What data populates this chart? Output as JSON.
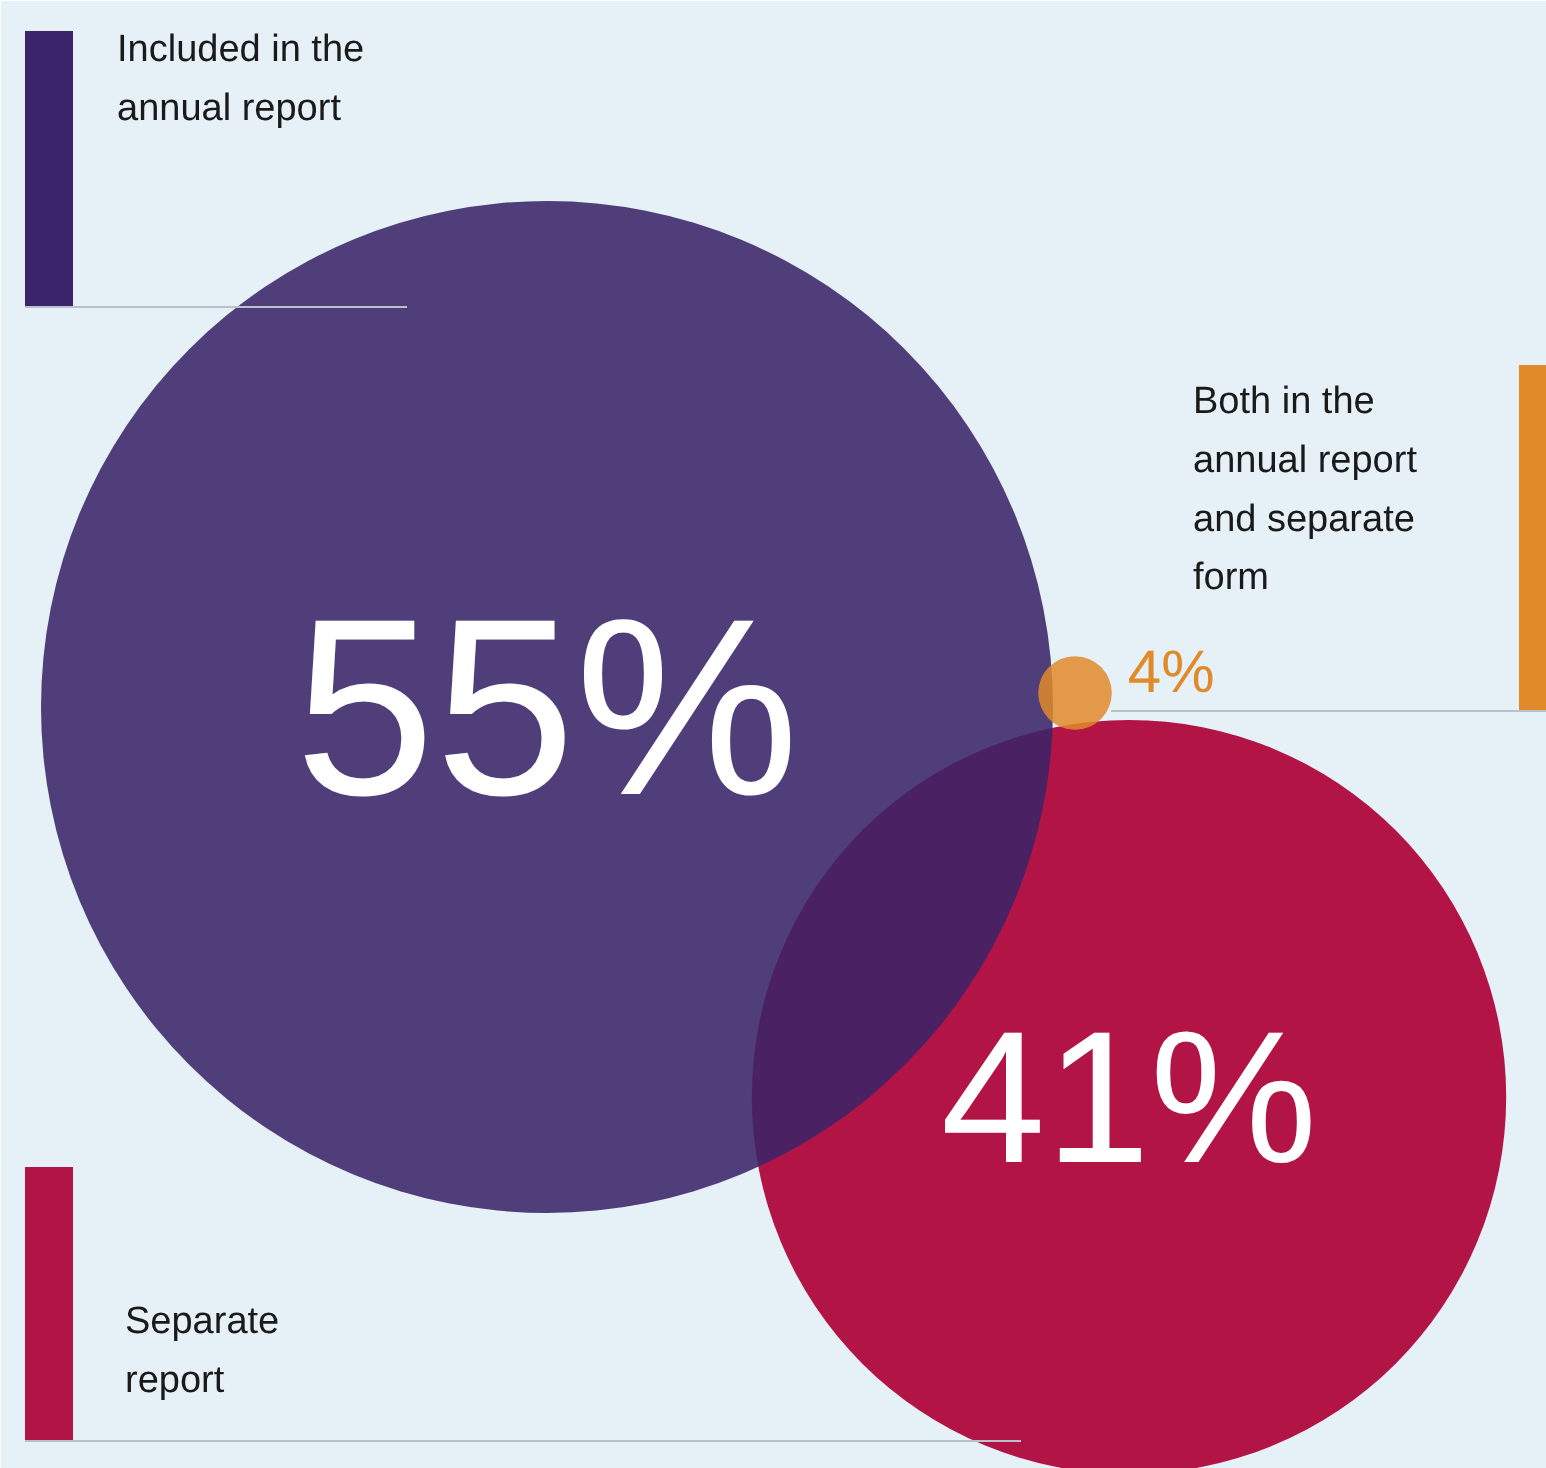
{
  "chart_data": {
    "type": "other",
    "categories": [
      "Included in the annual report",
      "Both in the annual report and separate form",
      "Separate report"
    ],
    "values": [
      55,
      4,
      41
    ],
    "colors": [
      "#3b2469",
      "#e08a2a",
      "#b21446"
    ],
    "data_labels": true,
    "value_labels": [
      "55%",
      "4%",
      "41%"
    ]
  }
}
